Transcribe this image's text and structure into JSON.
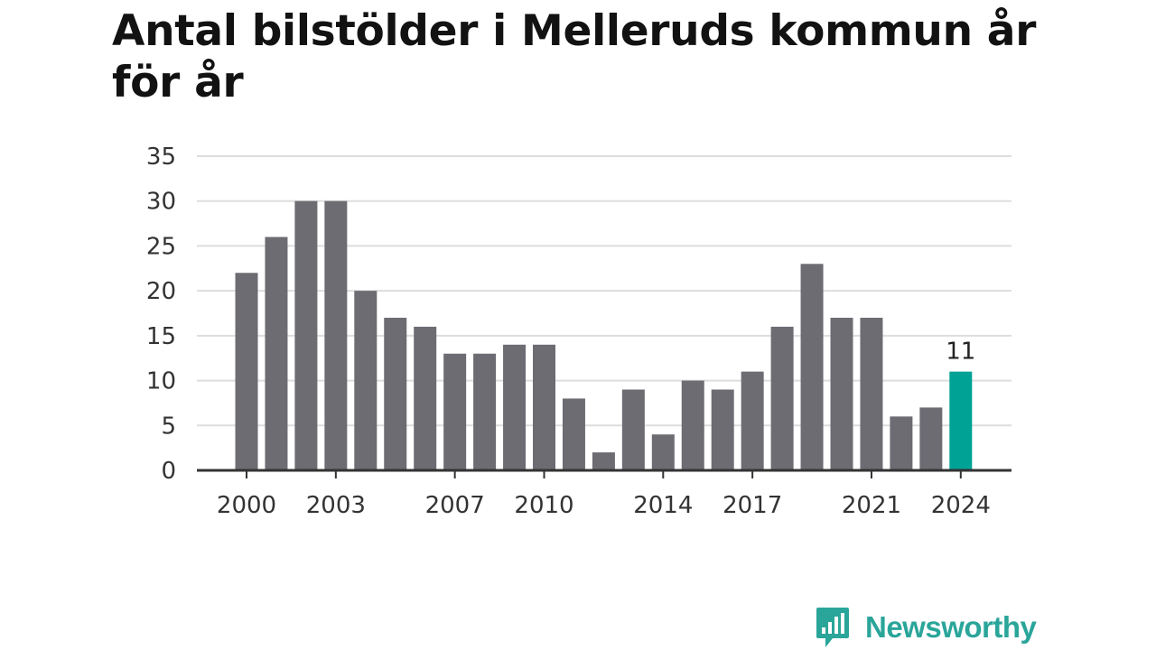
{
  "title": "Antal bilstölder i Melleruds kommun år för år",
  "brand": {
    "name": "Newsworthy",
    "icon": "newsworthy-logo-icon",
    "color": "#2aa59a"
  },
  "colors": {
    "bar": "#6d6c73",
    "highlight": "#00a296",
    "grid": "#dddddd",
    "axis": "#333333"
  },
  "chart_data": {
    "type": "bar",
    "title": "Antal bilstölder i Melleruds kommun år för år",
    "xlabel": "",
    "ylabel": "",
    "categories": [
      2000,
      2001,
      2002,
      2003,
      2004,
      2005,
      2006,
      2007,
      2008,
      2009,
      2010,
      2011,
      2012,
      2013,
      2014,
      2015,
      2016,
      2017,
      2018,
      2019,
      2020,
      2021,
      2022,
      2023,
      2024
    ],
    "values": [
      22,
      26,
      30,
      30,
      20,
      17,
      16,
      13,
      13,
      14,
      14,
      8,
      2,
      9,
      4,
      10,
      9,
      11,
      16,
      23,
      17,
      17,
      6,
      7,
      11
    ],
    "x_tick_labels": [
      "2000",
      "2003",
      "2007",
      "2010",
      "2014",
      "2017",
      "2021",
      "2024"
    ],
    "y_ticks": [
      0,
      5,
      10,
      15,
      20,
      25,
      30,
      35
    ],
    "ylim": [
      0,
      35
    ],
    "grid": true,
    "highlight": {
      "category": 2024,
      "value_label": "11"
    }
  }
}
